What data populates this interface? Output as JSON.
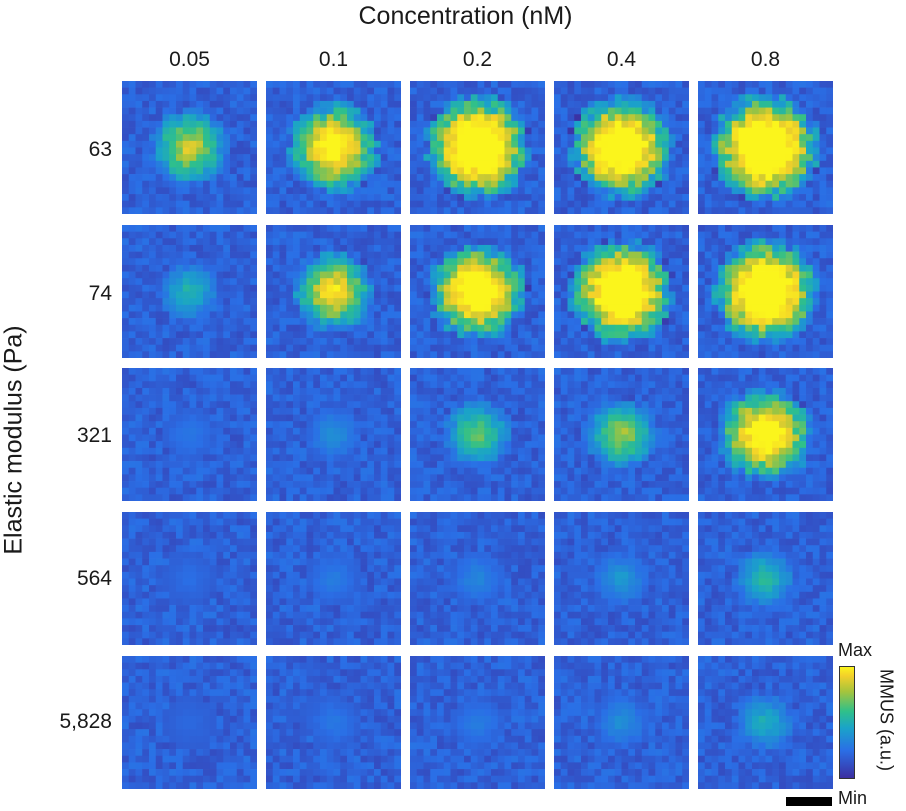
{
  "chart_data": {
    "type": "heatmap",
    "title": "Concentration (nM)",
    "xlabel": "Concentration (nM)",
    "ylabel": "Elastic modulus (Pa)",
    "columns": [
      "0.05",
      "0.1",
      "0.2",
      "0.4",
      "0.8"
    ],
    "rows": [
      "63",
      "74",
      "321",
      "564",
      "5,828"
    ],
    "colorbar": {
      "label": "MMUS (a.u.)",
      "max_label": "Max",
      "min_label": "Min",
      "colors": [
        "#3c2ea0",
        "#2a6fe6",
        "#1aa3c9",
        "#2fc08a",
        "#a6c43c",
        "#f3d02a",
        "#fbf51c"
      ]
    },
    "intensity": [
      [
        0.45,
        0.7,
        0.92,
        0.88,
        0.97
      ],
      [
        0.2,
        0.55,
        0.8,
        0.9,
        0.92
      ],
      [
        0.05,
        0.1,
        0.32,
        0.38,
        0.75
      ],
      [
        0.03,
        0.06,
        0.08,
        0.12,
        0.22
      ],
      [
        0.02,
        0.05,
        0.06,
        0.1,
        0.18
      ]
    ]
  }
}
